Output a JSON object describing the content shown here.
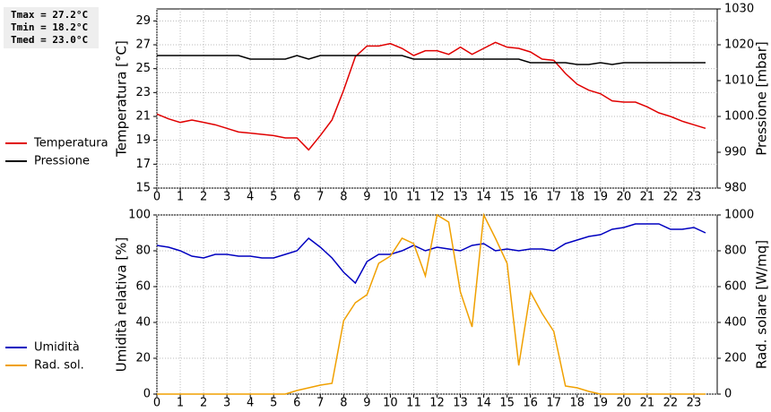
{
  "chart_data": [
    {
      "type": "line",
      "annotations": [
        "Tmax = 27.2°C",
        "Tmin = 18.2°C",
        "Tmed = 23.0°C"
      ],
      "y_label": "Temperatura [°C]",
      "y2_label": "Pressione [mbar]",
      "x": [
        0,
        0.5,
        1,
        1.5,
        2,
        2.5,
        3,
        3.5,
        4,
        4.5,
        5,
        5.5,
        6,
        6.5,
        7,
        7.5,
        8,
        8.5,
        9,
        9.5,
        10,
        10.5,
        11,
        11.5,
        12,
        12.5,
        13,
        13.5,
        14,
        14.5,
        15,
        15.5,
        16,
        16.5,
        17,
        17.5,
        18,
        18.5,
        19,
        19.5,
        20,
        20.5,
        21,
        21.5,
        22,
        22.5,
        23,
        23.5
      ],
      "xlim": [
        0,
        24
      ],
      "xticks": [
        0,
        1,
        2,
        3,
        4,
        5,
        6,
        7,
        8,
        9,
        10,
        11,
        12,
        13,
        14,
        15,
        16,
        17,
        18,
        19,
        20,
        21,
        22,
        23
      ],
      "ylim": [
        15,
        30
      ],
      "yticks": [
        15,
        17,
        19,
        21,
        23,
        25,
        27,
        29
      ],
      "y2lim": [
        980,
        1030
      ],
      "y2ticks": [
        980,
        990,
        1000,
        1010,
        1020,
        1030
      ],
      "grid": true,
      "series": [
        {
          "name": "Temperatura",
          "color": "#e00000",
          "values": [
            21.2,
            20.8,
            20.5,
            20.7,
            20.5,
            20.3,
            20.0,
            19.7,
            19.6,
            19.5,
            19.4,
            19.2,
            19.2,
            18.2,
            19.4,
            20.7,
            23.2,
            26.0,
            26.9,
            26.9,
            27.1,
            26.7,
            26.1,
            26.5,
            26.5,
            26.2,
            26.8,
            26.2,
            26.7,
            27.2,
            26.8,
            26.7,
            26.4,
            25.8,
            25.7,
            24.6,
            23.7,
            23.2,
            22.9,
            22.3,
            22.2,
            22.2,
            21.8,
            21.3,
            21.0,
            20.6,
            20.3,
            20.0
          ]
        },
        {
          "name": "Pressione",
          "color": "#000000",
          "axis": "y2",
          "values": [
            1017,
            1017,
            1017,
            1017,
            1017,
            1017,
            1017,
            1017,
            1016,
            1016,
            1016,
            1016,
            1017,
            1016,
            1017,
            1017,
            1017,
            1017,
            1017,
            1017,
            1017,
            1017,
            1016,
            1016,
            1016,
            1016,
            1016,
            1016,
            1016,
            1016,
            1016,
            1016,
            1015,
            1015,
            1015,
            1015,
            1014.5,
            1014.5,
            1015,
            1014.5,
            1015,
            1015,
            1015,
            1015,
            1015,
            1015,
            1015,
            1015
          ]
        }
      ]
    },
    {
      "type": "line",
      "y_label": "Umidità relativa [%]",
      "y2_label": "Rad. solare [W/mq]",
      "x": [
        0,
        0.5,
        1,
        1.5,
        2,
        2.5,
        3,
        3.5,
        4,
        4.5,
        5,
        5.5,
        6,
        6.5,
        7,
        7.5,
        8,
        8.5,
        9,
        9.5,
        10,
        10.5,
        11,
        11.5,
        12,
        12.5,
        13,
        13.5,
        14,
        14.5,
        15,
        15.5,
        16,
        16.5,
        17,
        17.5,
        18,
        18.5,
        19,
        19.5,
        20,
        20.5,
        21,
        21.5,
        22,
        22.5,
        23,
        23.5
      ],
      "xlim": [
        0,
        24
      ],
      "xticks": [
        0,
        1,
        2,
        3,
        4,
        5,
        6,
        7,
        8,
        9,
        10,
        11,
        12,
        13,
        14,
        15,
        16,
        17,
        18,
        19,
        20,
        21,
        22,
        23
      ],
      "ylim": [
        0,
        100
      ],
      "yticks": [
        0,
        20,
        40,
        60,
        80,
        100
      ],
      "y2lim": [
        0,
        1000
      ],
      "y2ticks": [
        0,
        200,
        400,
        600,
        800,
        1000
      ],
      "grid": true,
      "series": [
        {
          "name": "Umidità",
          "color": "#0000c0",
          "values": [
            83,
            82,
            80,
            77,
            76,
            78,
            78,
            77,
            77,
            76,
            76,
            78,
            80,
            87,
            82,
            76,
            68,
            62,
            74,
            78,
            78,
            80,
            83,
            80,
            82,
            81,
            80,
            83,
            84,
            80,
            81,
            80,
            81,
            81,
            80,
            84,
            86,
            88,
            89,
            92,
            93,
            95,
            95,
            95,
            92,
            92,
            93,
            90
          ]
        },
        {
          "name": "Rad. sol.",
          "color": "#f0a000",
          "axis": "y2",
          "values": [
            0,
            0,
            0,
            0,
            0,
            0,
            0,
            0,
            0,
            0,
            0,
            0,
            20,
            35,
            50,
            60,
            410,
            510,
            555,
            730,
            770,
            870,
            840,
            660,
            1000,
            960,
            570,
            375,
            1000,
            870,
            730,
            160,
            570,
            450,
            350,
            45,
            35,
            15,
            0,
            0,
            0,
            0,
            0,
            0,
            0,
            0,
            0,
            0
          ]
        }
      ]
    }
  ]
}
